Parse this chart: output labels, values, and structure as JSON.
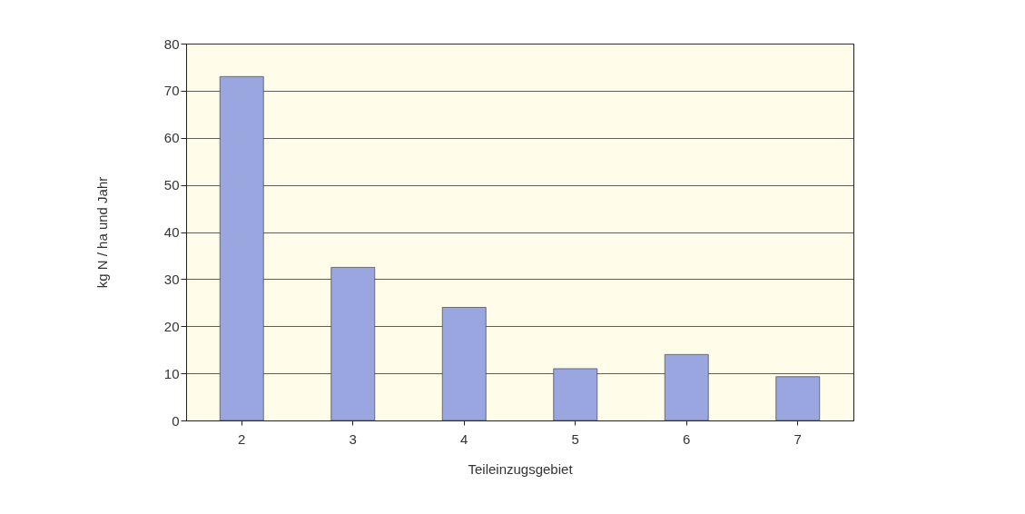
{
  "chart_data": {
    "type": "bar",
    "xlabel": "Teileinzugsgebiet",
    "ylabel": "kg N / ha und Jahr",
    "categories": [
      "2",
      "3",
      "4",
      "5",
      "6",
      "7"
    ],
    "values": [
      73,
      32.5,
      24,
      11,
      14,
      9.3
    ],
    "color": "#99a6e0",
    "ylim": [
      0,
      80
    ],
    "yticks": [
      0,
      10,
      20,
      30,
      40,
      50,
      60,
      70,
      80
    ],
    "grid": "y"
  }
}
